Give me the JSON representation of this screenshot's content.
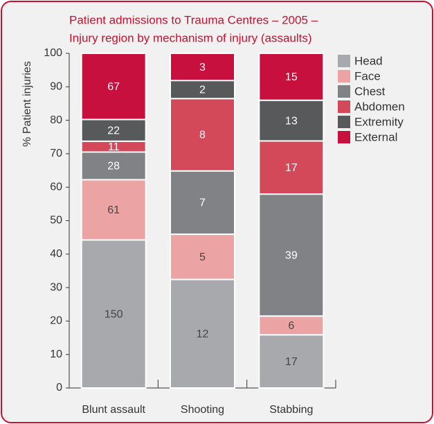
{
  "chart_data": {
    "type": "stacked_percent_bar",
    "title": "Patient admissions to Trauma Centres – 2005 –",
    "subtitle": "Injury region by mechanism of injury (assaults)",
    "y_label": "% Patient injuries",
    "categories": [
      "Blunt assault",
      "Shooting",
      "Stabbing"
    ],
    "series": [
      {
        "name": "Head",
        "color": "#a7a9ac",
        "label_color": "#444444",
        "values": [
          150,
          12,
          17
        ]
      },
      {
        "name": "Face",
        "color": "#eba3a3",
        "label_color": "#444444",
        "values": [
          61,
          5,
          6
        ]
      },
      {
        "name": "Chest",
        "color": "#808285",
        "label_color": "#ffffff",
        "values": [
          28,
          7,
          39
        ]
      },
      {
        "name": "Abdomen",
        "color": "#d4495a",
        "label_color": "#ffffff",
        "values": [
          11,
          8,
          17
        ]
      },
      {
        "name": "Extremity",
        "color": "#58595b",
        "label_color": "#ffffff",
        "values": [
          22,
          2,
          13
        ]
      },
      {
        "name": "External",
        "color": "#c8103e",
        "label_color": "#ffffff",
        "values": [
          67,
          3,
          15
        ]
      }
    ],
    "ylim": [
      0,
      100
    ],
    "yticks": [
      0,
      10,
      20,
      30,
      40,
      50,
      60,
      70,
      80,
      90,
      100
    ],
    "legend": "upper right"
  }
}
